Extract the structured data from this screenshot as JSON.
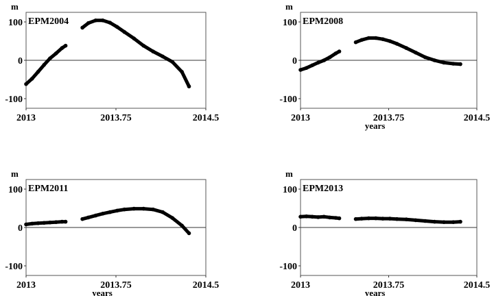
{
  "chart_data": [
    {
      "type": "scatter",
      "title": "EPM2004",
      "ylabel": "m",
      "xlabel": "",
      "xlim": [
        2013,
        2014.5
      ],
      "ylim": [
        -125,
        125
      ],
      "xticks": [
        "2013",
        "2013.75",
        "2014.5"
      ],
      "yticks": [
        "100",
        "0",
        "-100"
      ],
      "zero_line": true,
      "series": [
        {
          "x": [
            2013.0,
            2013.05,
            2013.1,
            2013.15,
            2013.2,
            2013.25,
            2013.3,
            2013.33
          ],
          "y": [
            -62,
            -48,
            -30,
            -12,
            5,
            18,
            32,
            38
          ]
        },
        {
          "x": [
            2013.47,
            2013.52,
            2013.58,
            2013.64,
            2013.7,
            2013.76,
            2013.82,
            2013.9,
            2013.98,
            2014.06,
            2014.14,
            2014.22,
            2014.3,
            2014.36
          ],
          "y": [
            85,
            97,
            104,
            104,
            98,
            87,
            74,
            57,
            38,
            23,
            10,
            -4,
            -30,
            -68
          ]
        }
      ]
    },
    {
      "type": "scatter",
      "title": "EPM2008",
      "ylabel": "m",
      "xlabel": "years",
      "xlim": [
        2013,
        2014.5
      ],
      "ylim": [
        -125,
        125
      ],
      "xticks": [
        "2013",
        "2013.75",
        "2014.5"
      ],
      "yticks": [
        "100",
        "0",
        "-100"
      ],
      "zero_line": true,
      "series": [
        {
          "x": [
            2013.0,
            2013.05,
            2013.1,
            2013.15,
            2013.2,
            2013.25,
            2013.3,
            2013.33
          ],
          "y": [
            -25,
            -20,
            -13,
            -6,
            0,
            8,
            18,
            23
          ]
        },
        {
          "x": [
            2013.47,
            2013.52,
            2013.58,
            2013.64,
            2013.7,
            2013.76,
            2013.82,
            2013.9,
            2013.98,
            2014.06,
            2014.14,
            2014.22,
            2014.3,
            2014.36
          ],
          "y": [
            47,
            53,
            58,
            58,
            55,
            50,
            43,
            32,
            20,
            8,
            0,
            -6,
            -9,
            -10
          ]
        }
      ]
    },
    {
      "type": "scatter",
      "title": "EPM2011",
      "ylabel": "m",
      "xlabel": "years",
      "xlim": [
        2013,
        2014.5
      ],
      "ylim": [
        -125,
        125
      ],
      "xticks": [
        "2013",
        "2013.75",
        "2014.5"
      ],
      "yticks": [
        "100",
        "0",
        "-100"
      ],
      "zero_line": true,
      "series": [
        {
          "x": [
            2013.0,
            2013.05,
            2013.1,
            2013.15,
            2013.2,
            2013.25,
            2013.3,
            2013.33
          ],
          "y": [
            8,
            10,
            11,
            12,
            13,
            14,
            15,
            15
          ]
        },
        {
          "x": [
            2013.47,
            2013.52,
            2013.58,
            2013.64,
            2013.7,
            2013.76,
            2013.82,
            2013.9,
            2013.98,
            2014.06,
            2014.14,
            2014.22,
            2014.3,
            2014.36
          ],
          "y": [
            22,
            26,
            31,
            36,
            40,
            44,
            47,
            49,
            49,
            47,
            40,
            25,
            5,
            -15
          ]
        }
      ]
    },
    {
      "type": "scatter",
      "title": "EPM2013",
      "ylabel": "m",
      "xlabel": "years",
      "xlim": [
        2013,
        2014.5
      ],
      "ylim": [
        -125,
        125
      ],
      "xticks": [
        "2013",
        "2013.75",
        "2014.5"
      ],
      "yticks": [
        "100",
        "0",
        "-100"
      ],
      "zero_line": true,
      "series": [
        {
          "x": [
            2013.0,
            2013.05,
            2013.1,
            2013.15,
            2013.2,
            2013.25,
            2013.3,
            2013.33
          ],
          "y": [
            28,
            29,
            28,
            27,
            28,
            26,
            25,
            24
          ]
        },
        {
          "x": [
            2013.47,
            2013.52,
            2013.58,
            2013.64,
            2013.7,
            2013.76,
            2013.82,
            2013.9,
            2013.98,
            2014.06,
            2014.14,
            2014.22,
            2014.3,
            2014.36
          ],
          "y": [
            22,
            23,
            24,
            24,
            23,
            23,
            22,
            21,
            19,
            17,
            15,
            14,
            14,
            15
          ]
        }
      ]
    }
  ]
}
